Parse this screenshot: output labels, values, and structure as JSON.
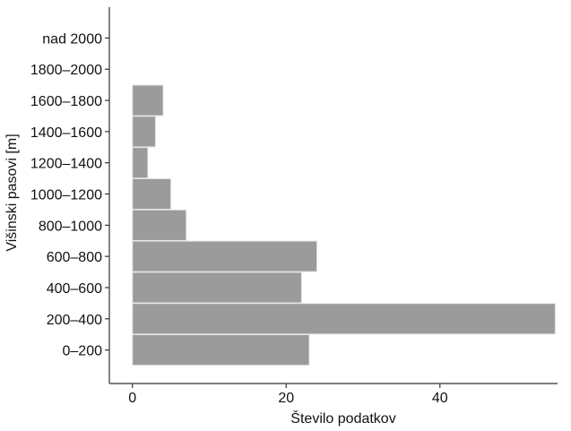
{
  "chart_data": {
    "type": "bar",
    "orientation": "horizontal",
    "title": "",
    "xlabel": "Število podatkov",
    "ylabel": "Višinski pasovi [m]",
    "categories": [
      "0–200",
      "200–400",
      "400–600",
      "600–800",
      "800–1000",
      "1000–1200",
      "1200–1400",
      "1400–1600",
      "1600–1800",
      "1800–2000",
      "nad 2000"
    ],
    "values": [
      23,
      55,
      22,
      24,
      7,
      5,
      2,
      3,
      4,
      0,
      0
    ],
    "xlim": [
      -3,
      55.3
    ],
    "xticks": [
      "0",
      "20",
      "40"
    ],
    "grid": false,
    "bar_color": "#9b9b9b"
  }
}
